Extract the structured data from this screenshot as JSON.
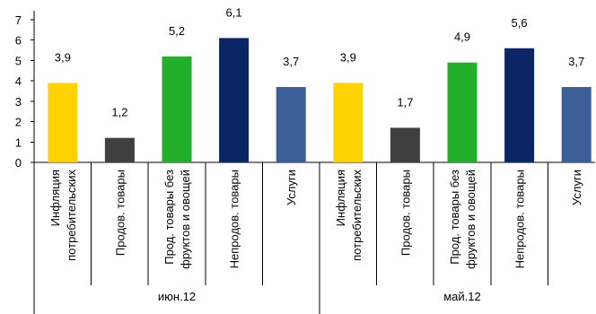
{
  "chart_data": {
    "type": "bar",
    "ylim": [
      0,
      7
    ],
    "y_ticks": [
      "0",
      "1",
      "2",
      "3",
      "4",
      "5",
      "6",
      "7"
    ],
    "grid": false,
    "data_labels_shown": true,
    "groups": [
      {
        "label": "июн.12",
        "categories": [
          [
            "Инфляция",
            "потребительских"
          ],
          [
            "Продов. товары"
          ],
          [
            "Прод. товары без",
            "фруктов и овощей"
          ],
          [
            "Непродов. товары"
          ],
          [
            "Услуги"
          ]
        ],
        "values": [
          3.9,
          1.2,
          5.2,
          6.1,
          3.7
        ],
        "value_labels": [
          "3,9",
          "1,2",
          "5,2",
          "6,1",
          "3,7"
        ],
        "colors": [
          "#FFD200",
          "#404040",
          "#22B02C",
          "#0C2565",
          "#3D5F97"
        ]
      },
      {
        "label": "май.12",
        "categories": [
          [
            "Инфляция",
            "потребительских"
          ],
          [
            "Продов. товары"
          ],
          [
            "Прод. товары без",
            "фруктов и овощей"
          ],
          [
            "Непродов. товары"
          ],
          [
            "Услуги"
          ]
        ],
        "values": [
          3.9,
          1.7,
          4.9,
          5.6,
          3.7
        ],
        "value_labels": [
          "3,9",
          "1,7",
          "4,9",
          "5,6",
          "3,7"
        ],
        "colors": [
          "#FFD200",
          "#404040",
          "#22B02C",
          "#0C2565",
          "#3D5F97"
        ]
      }
    ]
  }
}
